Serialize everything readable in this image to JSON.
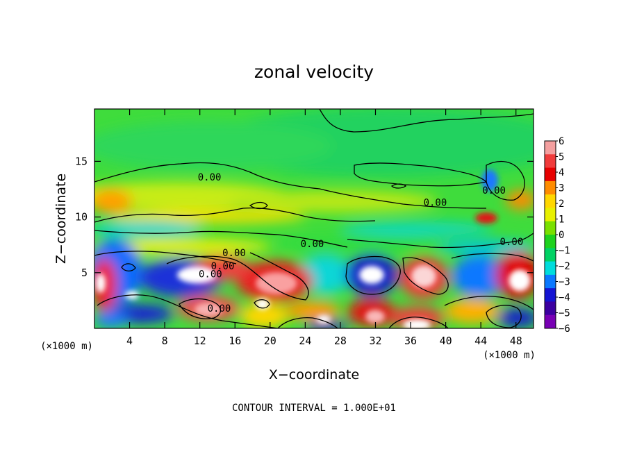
{
  "chart_data": {
    "type": "heatmap",
    "title": "zonal velocity",
    "xlabel": "X−coordinate",
    "ylabel": "Z−coordinate",
    "x_unit": "(×1000 m)",
    "x_unit_right": "(×1000 m)",
    "xlim": [
      0,
      50
    ],
    "ylim": [
      0,
      19.7
    ],
    "x_ticks": [
      4,
      8,
      12,
      16,
      20,
      24,
      28,
      32,
      36,
      40,
      44,
      48
    ],
    "y_ticks": [
      5,
      10,
      15
    ],
    "colorbar": {
      "range": [
        -6,
        6
      ],
      "ticks": [
        "6",
        "5",
        "4",
        "3",
        "2",
        "1",
        "0",
        "−1",
        "−2",
        "−3",
        "−4",
        "−5",
        "−6"
      ],
      "colors": [
        "#f4a0a0",
        "#f03c3c",
        "#e60000",
        "#ff8c00",
        "#ffd700",
        "#e8f000",
        "#7ae000",
        "#1ed21e",
        "#00d264",
        "#00dcdc",
        "#0a78ff",
        "#1414d2",
        "#3c00a0",
        "#7800b4"
      ]
    },
    "contour_labels": [
      {
        "text": "0.00",
        "x": 13.1,
        "y": 13.6
      },
      {
        "text": "0.00",
        "x": 15.9,
        "y": 6.8
      },
      {
        "text": "0.00",
        "x": 14.6,
        "y": 5.6
      },
      {
        "text": "0.00",
        "x": 13.2,
        "y": 4.9
      },
      {
        "text": "0.00",
        "x": 14.2,
        "y": 1.8
      },
      {
        "text": "0.00",
        "x": 24.8,
        "y": 7.6
      },
      {
        "text": "0.00",
        "x": 38.8,
        "y": 11.3
      },
      {
        "text": "0.00",
        "x": 45.5,
        "y": 12.4
      },
      {
        "text": "0.00",
        "x": 47.5,
        "y": 7.8
      }
    ],
    "contour_interval_label": "CONTOUR INTERVAL = 1.000E+01"
  }
}
